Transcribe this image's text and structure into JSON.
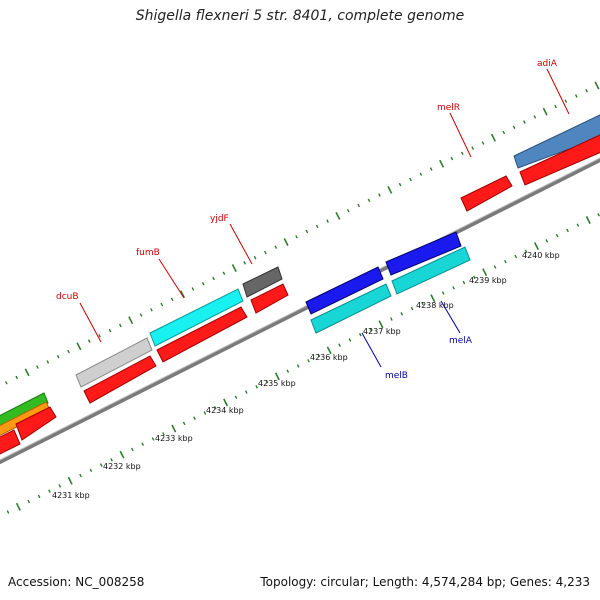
{
  "title": "Shigella flexneri 5 str. 8401, complete genome",
  "footer": {
    "accession": "Accession: NC_008258",
    "summary": "Topology: circular; Length: 4,574,284 bp; Genes: 4,233"
  },
  "colors": {
    "backbone": "#8a8a8a",
    "tick": "#2e7d2e",
    "forward_label": "#cc0000",
    "reverse_label": "#0000aa",
    "red_gene": "#ff1a1a",
    "cyan_gene": "#19d6d6",
    "blue_gene": "#1a1aee",
    "gray_gene": "#cfcfcf",
    "dark_gray_gene": "#666666",
    "steel_gene": "#4f86bf",
    "green_gene": "#33bb22",
    "orange_gene": "#ff9911"
  },
  "scale_labels": [
    "4231 kbp",
    "4232 kbp",
    "4233 kbp",
    "4234 kbp",
    "4235 kbp",
    "4236 kbp",
    "4237 kbp",
    "4238 kbp",
    "4239 kbp",
    "4240 kbp"
  ],
  "forward_genes": [
    {
      "name": "dcuB"
    },
    {
      "name": "fumB"
    },
    {
      "name": "yjdF"
    },
    {
      "name": "melR"
    },
    {
      "name": "adiA"
    }
  ],
  "reverse_genes": [
    {
      "name": "melB"
    },
    {
      "name": "melA"
    }
  ]
}
